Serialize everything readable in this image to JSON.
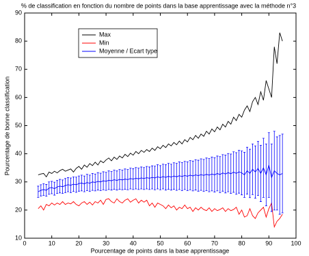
{
  "chart_data": {
    "type": "line",
    "title": "% de classification en fonction du nombre de points dans la base apprentissage  avec la méthode n°3",
    "x_label": "Pourcentage de points dans la base apprentissage",
    "y_label": "Pourcentage de bonne classification",
    "x": [
      5,
      6,
      7,
      8,
      9,
      10,
      11,
      12,
      13,
      14,
      15,
      16,
      17,
      18,
      19,
      20,
      21,
      22,
      23,
      24,
      25,
      26,
      27,
      28,
      29,
      30,
      31,
      32,
      33,
      34,
      35,
      36,
      37,
      38,
      39,
      40,
      41,
      42,
      43,
      44,
      45,
      46,
      47,
      48,
      49,
      50,
      51,
      52,
      53,
      54,
      55,
      56,
      57,
      58,
      59,
      60,
      61,
      62,
      63,
      64,
      65,
      66,
      67,
      68,
      69,
      70,
      71,
      72,
      73,
      74,
      75,
      76,
      77,
      78,
      79,
      80,
      81,
      82,
      83,
      84,
      85,
      86,
      87,
      88,
      89,
      90,
      91,
      92,
      93,
      94,
      95
    ],
    "series": [
      {
        "name": "Max",
        "color": "#000000",
        "values": [
          32.5,
          32.8,
          33,
          31.8,
          33.5,
          33,
          33.8,
          33.2,
          34,
          34.5,
          33.8,
          34.2,
          34.6,
          33.5,
          34.8,
          35.5,
          34.5,
          36,
          35.2,
          36.5,
          35.8,
          37,
          36,
          37.5,
          36.8,
          37.8,
          38.5,
          37.5,
          38.8,
          38,
          39.2,
          38.5,
          39.8,
          39,
          40.2,
          39.5,
          40.8,
          40,
          41.2,
          40.5,
          41.5,
          40.8,
          42,
          41.2,
          42.5,
          41.8,
          43,
          42.2,
          43.5,
          42.8,
          44,
          43.2,
          44.5,
          43.5,
          45,
          44.2,
          45.8,
          45,
          46.5,
          45.5,
          47,
          46.2,
          48,
          47,
          48.8,
          47.8,
          49.5,
          48.5,
          50.5,
          49.5,
          51.5,
          50.5,
          53,
          51.8,
          54,
          53,
          55.5,
          57,
          55,
          58.5,
          60,
          57.5,
          62,
          59,
          66,
          63,
          60,
          78,
          72,
          83,
          80
        ]
      },
      {
        "name": "Min",
        "color": "#ff0000",
        "values": [
          20.5,
          21.5,
          20,
          22,
          21.5,
          22.5,
          21.8,
          22.5,
          22,
          23,
          22,
          22.5,
          22.2,
          23,
          22,
          21.5,
          22.5,
          23,
          22,
          22.8,
          21.8,
          23,
          22.5,
          23.5,
          22,
          23.8,
          24,
          23,
          22.5,
          24,
          23,
          22.5,
          23.5,
          24,
          22.8,
          23.5,
          24,
          22.5,
          23.5,
          22.8,
          23.5,
          21.5,
          22.5,
          21,
          22.5,
          22,
          21.5,
          20.5,
          21.8,
          20.8,
          21.5,
          20,
          21,
          20.5,
          21.8,
          20.5,
          21,
          19.5,
          20.8,
          20,
          21,
          20.2,
          19.8,
          20.8,
          19.5,
          20.5,
          19.8,
          20.2,
          20.8,
          19.5,
          20.5,
          19.8,
          20.2,
          21,
          18.5,
          20,
          17.5,
          18,
          20.5,
          18,
          17,
          19,
          20,
          21,
          17.5,
          20.5,
          22.5,
          14,
          16,
          17,
          18.5
        ]
      },
      {
        "name": "Moyenne / Ecart type",
        "color": "#0000ff",
        "values": [
          26.5,
          27,
          27.3,
          27,
          27.8,
          28,
          27.6,
          28.2,
          28.5,
          28.3,
          28.7,
          29,
          28.8,
          29.2,
          29,
          29.4,
          29.6,
          29.3,
          29.8,
          29.5,
          30,
          29.8,
          30.2,
          30,
          30.4,
          30.2,
          30.6,
          30.4,
          30.8,
          30.5,
          30.9,
          30.7,
          31,
          30.8,
          31.2,
          31,
          31.3,
          31.1,
          31.4,
          31.2,
          31.5,
          31.3,
          31.6,
          31.4,
          31.8,
          31.5,
          31.9,
          31.6,
          32,
          31.7,
          32.1,
          31.8,
          32.2,
          31.9,
          32.3,
          32,
          32.4,
          32.1,
          32.5,
          32.2,
          32.6,
          32.3,
          32.7,
          32.4,
          32.8,
          32.5,
          33,
          32.6,
          33.2,
          32.8,
          33.3,
          32.9,
          33.5,
          33,
          33.6,
          33.2,
          32.5,
          34,
          33,
          34.5,
          33.5,
          34.8,
          33,
          35,
          32.5,
          36,
          31.5,
          34,
          33,
          32.5,
          33
        ],
        "errors": [
          2,
          2,
          2.1,
          2.1,
          2.2,
          2.2,
          2.3,
          2.3,
          2.4,
          2.4,
          2.5,
          2.5,
          2.6,
          2.6,
          2.7,
          2.7,
          2.8,
          2.8,
          2.9,
          2.9,
          3,
          3,
          3.1,
          3.1,
          3.2,
          3.2,
          3.3,
          3.3,
          3.4,
          3.4,
          3.5,
          3.5,
          3.6,
          3.6,
          3.7,
          3.7,
          3.8,
          3.8,
          3.9,
          3.9,
          4,
          4,
          4.1,
          4.2,
          4.3,
          4.3,
          4.4,
          4.5,
          4.6,
          4.6,
          4.7,
          4.8,
          4.9,
          5,
          5,
          5.1,
          5.2,
          5.3,
          5.4,
          5.5,
          5.6,
          5.7,
          5.8,
          5.9,
          6,
          6.1,
          6.2,
          6.4,
          6.5,
          6.7,
          6.8,
          7,
          7.2,
          7.4,
          7.6,
          7.8,
          8,
          8.3,
          8.6,
          9,
          9.3,
          9.6,
          10,
          10.5,
          11,
          11.5,
          12,
          14,
          13,
          14,
          14
        ]
      }
    ],
    "xlim": [
      0,
      100
    ],
    "xticks": [
      0,
      10,
      20,
      30,
      40,
      50,
      60,
      70,
      80,
      90,
      100
    ],
    "ylim": [
      10,
      90
    ],
    "yticks": [
      10,
      20,
      30,
      40,
      50,
      60,
      70,
      80,
      90
    ],
    "grid": false,
    "legend_position": "upper left"
  }
}
